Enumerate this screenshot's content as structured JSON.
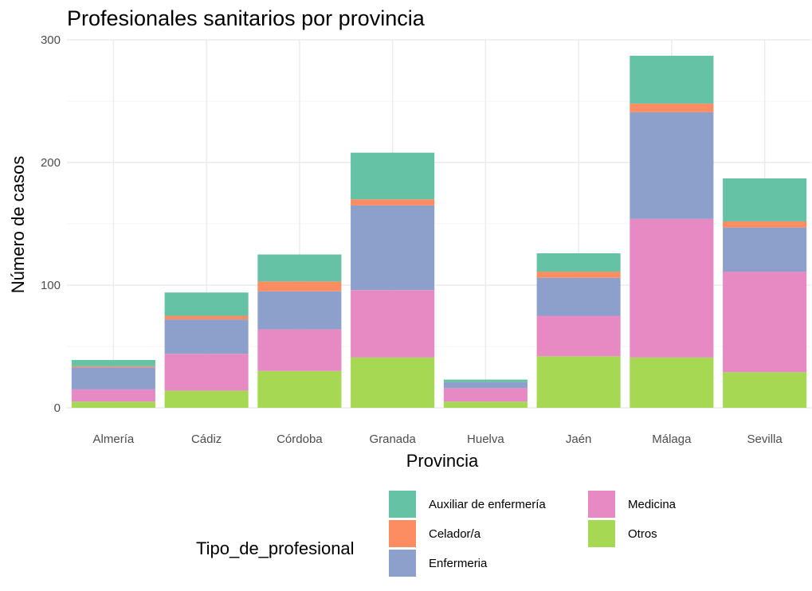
{
  "chart_data": {
    "type": "bar",
    "stacked": true,
    "title": "Profesionales sanitarios por provincia",
    "xlabel": "Provincia",
    "ylabel": "Número de casos",
    "ylim": [
      0,
      300
    ],
    "yticks": [
      0,
      100,
      200,
      300
    ],
    "grid": true,
    "legend_position": "bottom",
    "legend_title": "Tipo_de_profesional",
    "categories": [
      "Almería",
      "Cádiz",
      "Córdoba",
      "Granada",
      "Huelva",
      "Jaén",
      "Málaga",
      "Sevilla"
    ],
    "series": [
      {
        "name": "Otros",
        "color": "#a6d854",
        "values": [
          5,
          14,
          30,
          41,
          5,
          42,
          41,
          29
        ]
      },
      {
        "name": "Medicina",
        "color": "#e78ac3",
        "values": [
          10,
          30,
          34,
          55,
          11,
          33,
          113,
          82
        ]
      },
      {
        "name": "Enfermeria",
        "color": "#8da0cb",
        "values": [
          18,
          28,
          31,
          69,
          5,
          31,
          87,
          36
        ]
      },
      {
        "name": "Celador/a",
        "color": "#fc8d62",
        "values": [
          1,
          3,
          8,
          5,
          0,
          5,
          7,
          5
        ]
      },
      {
        "name": "Auxiliar de enfermería",
        "color": "#66c2a5",
        "values": [
          5,
          19,
          22,
          38,
          2,
          15,
          39,
          35
        ]
      }
    ]
  },
  "legend_items": [
    {
      "label": "Auxiliar de enfermería",
      "color": "#66c2a5"
    },
    {
      "label": "Celador/a",
      "color": "#fc8d62"
    },
    {
      "label": "Enfermeria",
      "color": "#8da0cb"
    },
    {
      "label": "Medicina",
      "color": "#e78ac3"
    },
    {
      "label": "Otros",
      "color": "#a6d854"
    }
  ]
}
